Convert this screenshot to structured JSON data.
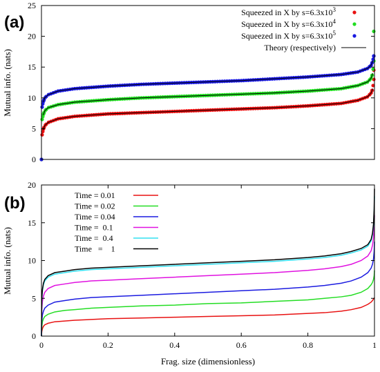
{
  "chart_data": [
    {
      "type": "scatter",
      "panel_label": "(a)",
      "ylabel": "Mutual info. (nats)",
      "xlabel": "",
      "xlim": [
        0,
        1
      ],
      "ylim": [
        0,
        25
      ],
      "x_ticks": [],
      "y_ticks": [
        "0",
        "5",
        "10",
        "15",
        "20",
        "25"
      ],
      "grid": false,
      "legend_position": "top-right",
      "series": [
        {
          "name_prefix": "Squeezed in X by s=6.3x10",
          "name_exponent": "3",
          "kind": "points",
          "color": "#e81010",
          "x": [
            0,
            0.002,
            0.005,
            0.01,
            0.02,
            0.05,
            0.1,
            0.2,
            0.3,
            0.4,
            0.5,
            0.6,
            0.7,
            0.8,
            0.9,
            0.95,
            0.98,
            0.99,
            0.995,
            0.998,
            1
          ],
          "values": [
            0,
            4.0,
            4.8,
            5.5,
            6.0,
            6.6,
            7.0,
            7.4,
            7.6,
            7.8,
            8.0,
            8.2,
            8.4,
            8.7,
            9.1,
            9.6,
            10.2,
            10.8,
            11.5,
            13.0,
            14.5
          ]
        },
        {
          "name_prefix": "Squeezed in X by s=6.3x10",
          "name_exponent": "4",
          "kind": "points",
          "color": "#22dd22",
          "x": [
            0,
            0.002,
            0.005,
            0.01,
            0.02,
            0.05,
            0.1,
            0.2,
            0.3,
            0.4,
            0.5,
            0.6,
            0.7,
            0.8,
            0.9,
            0.95,
            0.98,
            0.99,
            0.995,
            0.998,
            1
          ],
          "values": [
            0,
            6.5,
            7.2,
            7.9,
            8.4,
            8.9,
            9.3,
            9.7,
            10.0,
            10.2,
            10.4,
            10.6,
            10.8,
            11.1,
            11.5,
            12.0,
            12.6,
            13.2,
            14.0,
            16.0,
            20.8
          ]
        },
        {
          "name_prefix": "Squeezed in X by s=6.3x10",
          "name_exponent": "5",
          "kind": "points",
          "color": "#1a1ae0",
          "x": [
            0,
            0.002,
            0.005,
            0.01,
            0.02,
            0.05,
            0.1,
            0.2,
            0.3,
            0.4,
            0.5,
            0.6,
            0.7,
            0.8,
            0.9,
            0.95,
            0.98,
            0.99,
            0.995,
            0.998,
            1
          ],
          "values": [
            0,
            8.5,
            9.3,
            10.0,
            10.5,
            11.1,
            11.5,
            11.9,
            12.2,
            12.4,
            12.6,
            12.8,
            13.1,
            13.4,
            13.8,
            14.2,
            14.8,
            15.3,
            16.0,
            16.8,
            16.8
          ]
        },
        {
          "name": "Theory (respectively)",
          "kind": "legend-line",
          "color": "#000000"
        }
      ]
    },
    {
      "type": "line",
      "panel_label": "(b)",
      "ylabel": "Mutual info. (nats)",
      "xlabel": "Frag. size (dimensionless)",
      "xlim": [
        0,
        1
      ],
      "ylim": [
        0,
        20
      ],
      "x_ticks": [
        "0",
        "0.2",
        "0.4",
        "0.6",
        "0.8",
        "1"
      ],
      "y_ticks": [
        "0",
        "5",
        "10",
        "15",
        "20"
      ],
      "grid": false,
      "legend_position": "top-left",
      "x": [
        0,
        0.001,
        0.003,
        0.006,
        0.01,
        0.02,
        0.04,
        0.07,
        0.1,
        0.15,
        0.2,
        0.3,
        0.4,
        0.5,
        0.6,
        0.7,
        0.8,
        0.85,
        0.9,
        0.93,
        0.96,
        0.98,
        0.99,
        0.994,
        0.997,
        0.999,
        1
      ],
      "series": [
        {
          "name": "Time = 0.01",
          "color": "#e81010",
          "values": [
            0,
            0.6,
            1.0,
            1.3,
            1.5,
            1.7,
            1.9,
            2.0,
            2.1,
            2.2,
            2.3,
            2.4,
            2.5,
            2.6,
            2.7,
            2.8,
            3.0,
            3.1,
            3.3,
            3.5,
            3.8,
            4.2,
            4.5,
            4.7,
            4.9,
            5.0,
            5.1
          ]
        },
        {
          "name": "Time = 0.02",
          "color": "#22dd22",
          "values": [
            0,
            1.2,
            1.9,
            2.3,
            2.6,
            2.9,
            3.2,
            3.4,
            3.5,
            3.7,
            3.8,
            4.0,
            4.1,
            4.3,
            4.4,
            4.6,
            4.8,
            5.0,
            5.2,
            5.4,
            5.8,
            6.3,
            6.8,
            7.1,
            7.5,
            8.0,
            8.7
          ]
        },
        {
          "name": "Time = 0.04",
          "color": "#1a1ae0",
          "values": [
            0,
            2.0,
            2.8,
            3.3,
            3.7,
            4.1,
            4.5,
            4.7,
            4.9,
            5.1,
            5.2,
            5.4,
            5.6,
            5.8,
            6.0,
            6.2,
            6.5,
            6.7,
            7.0,
            7.3,
            7.8,
            8.4,
            9.0,
            9.5,
            10.2,
            11.2,
            12.5
          ]
        },
        {
          "name": "Time =  0.1",
          "color": "#e010e0",
          "values": [
            0,
            3.5,
            4.6,
            5.3,
            5.8,
            6.3,
            6.7,
            6.9,
            7.1,
            7.3,
            7.4,
            7.6,
            7.8,
            8.0,
            8.2,
            8.4,
            8.7,
            8.9,
            9.2,
            9.5,
            10.0,
            10.6,
            11.3,
            12.0,
            13.0,
            14.5,
            16.0
          ]
        },
        {
          "name": "Time =  0.4",
          "color": "#30e0f0",
          "values": [
            0,
            4.8,
            6.0,
            6.8,
            7.3,
            7.8,
            8.2,
            8.4,
            8.6,
            8.8,
            8.9,
            9.1,
            9.3,
            9.5,
            9.7,
            9.9,
            10.2,
            10.4,
            10.7,
            11.0,
            11.4,
            11.9,
            12.6,
            13.4,
            14.6,
            16.5,
            18.5
          ]
        },
        {
          "name": "Time   =    1",
          "color": "#000000",
          "values": [
            0,
            5.0,
            6.2,
            7.0,
            7.5,
            8.0,
            8.4,
            8.6,
            8.8,
            9.0,
            9.1,
            9.3,
            9.5,
            9.7,
            9.9,
            10.1,
            10.4,
            10.6,
            10.9,
            11.2,
            11.6,
            12.1,
            12.8,
            13.6,
            14.8,
            16.8,
            19.5
          ]
        }
      ]
    }
  ]
}
